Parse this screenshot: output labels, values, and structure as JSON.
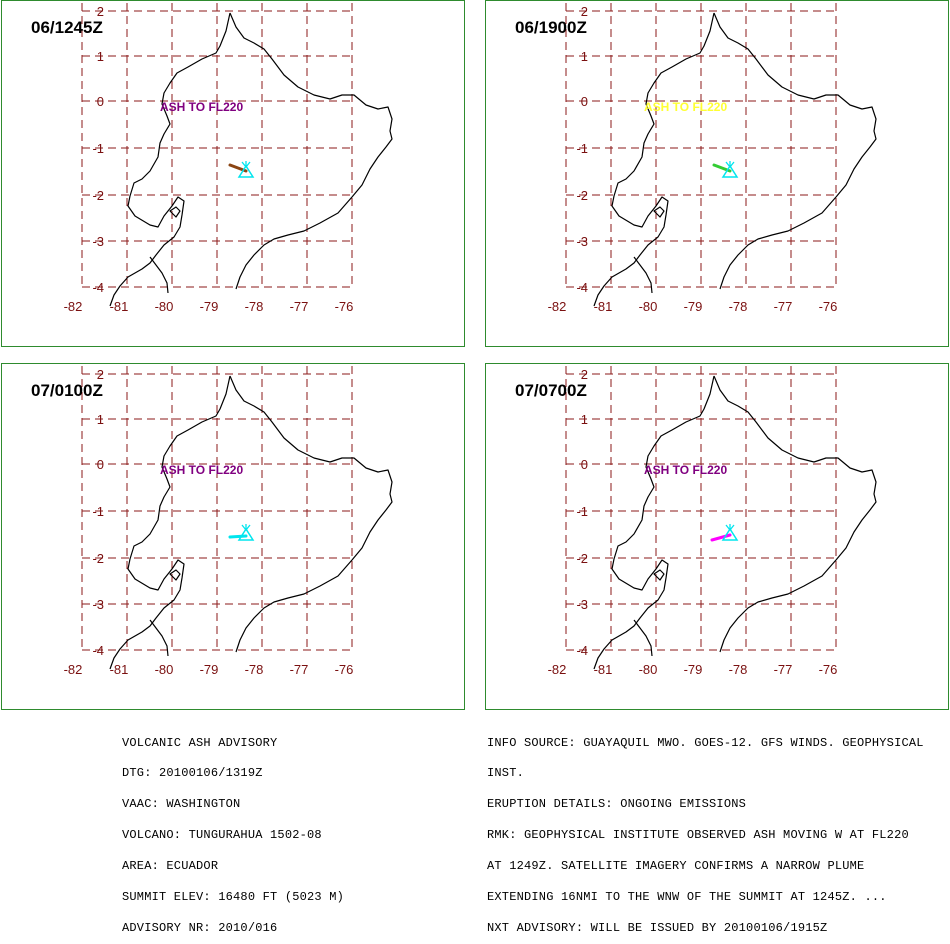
{
  "panels": [
    {
      "time": "06/1245Z",
      "ash_label": "ASH TO FL220",
      "ash_color": "#800080",
      "plume_color": "#8b4513"
    },
    {
      "time": "06/1900Z",
      "ash_label": "ASH TO FL220",
      "ash_color": "#ffff33",
      "plume_color": "#33cc33"
    },
    {
      "time": "07/0100Z",
      "ash_label": "ASH TO FL220",
      "ash_color": "#800080",
      "plume_color": "#00e5ee"
    },
    {
      "time": "07/0700Z",
      "ash_label": "ASH TO FL220",
      "ash_color": "#800080",
      "plume_color": "#ff00ff"
    }
  ],
  "volcano_color": "#00e5ee",
  "axes": {
    "lat_ticks": [
      "2",
      "1",
      "0",
      "-1",
      "-2",
      "-3",
      "-4"
    ],
    "lon_ticks": [
      "-82",
      "-81",
      "-80",
      "-79",
      "-78",
      "-77",
      "-76"
    ]
  },
  "advisory_left": [
    "VOLCANIC ASH ADVISORY",
    "DTG: 20100106/1319Z",
    "VAAC: WASHINGTON",
    "VOLCANO: TUNGURAHUA 1502-08",
    "AREA: ECUADOR",
    "SUMMIT ELEV: 16480 FT (5023 M)",
    "ADVISORY NR: 2010/016"
  ],
  "advisory_right": [
    "INFO SOURCE: GUAYAQUIL MWO. GOES-12. GFS WINDS. GEOPHYSICAL",
    "INST.",
    "ERUPTION DETAILS: ONGOING EMISSIONS",
    "RMK: GEOPHYSICAL INSTITUTE OBSERVED ASH MOVING W AT FL220",
    "AT 1249Z. SATELLITE IMAGERY CONFIRMS A NARROW PLUME",
    "EXTENDING 16NMI TO THE WNW OF THE SUMMIT AT 1245Z. ...",
    "NXT ADVISORY: WILL BE ISSUED BY 20100106/1915Z"
  ]
}
